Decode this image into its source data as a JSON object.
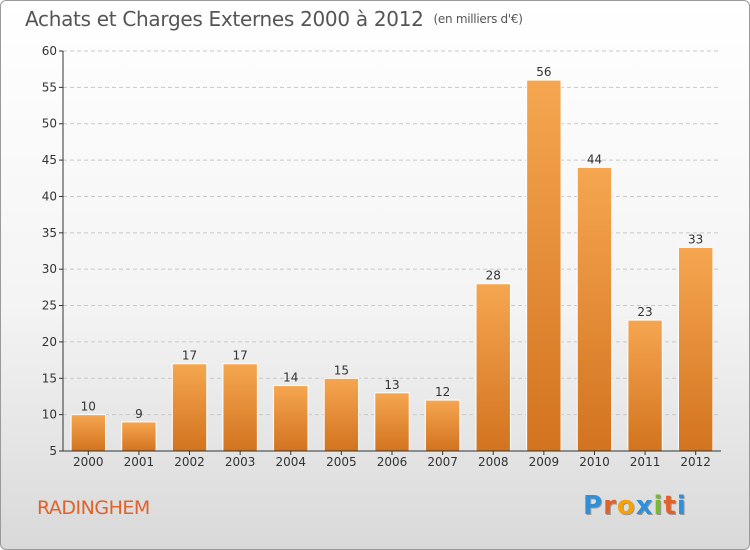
{
  "title": "Achats et Charges Externes 2000 à 2012",
  "subtitle": "(en milliers d'€)",
  "place": "RADINGHEM",
  "logo": {
    "letters": [
      "P",
      "r",
      "o",
      "x",
      "i",
      "t",
      "i"
    ],
    "colors": [
      "#2f8fd8",
      "#e0622b",
      "#f2a20c",
      "#2f8fd8",
      "#78b832",
      "#e0622b",
      "#2f8fd8"
    ]
  },
  "colors": {
    "bar_top": "#f6a650",
    "bar_bottom": "#d2731f",
    "grid": "#c8c8c8",
    "axis": "#333333"
  },
  "chart_data": {
    "type": "bar",
    "categories": [
      "2000",
      "2001",
      "2002",
      "2003",
      "2004",
      "2005",
      "2006",
      "2007",
      "2008",
      "2009",
      "2010",
      "2011",
      "2012"
    ],
    "values": [
      10,
      9,
      17,
      17,
      14,
      15,
      13,
      12,
      28,
      56,
      44,
      23,
      33
    ],
    "data_labels": [
      "10",
      "9",
      "17",
      "17",
      "14",
      "15",
      "13",
      "12",
      "28",
      "56",
      "44",
      "23",
      "33"
    ],
    "ylim": [
      5,
      60
    ],
    "yticks": [
      5,
      10,
      15,
      20,
      25,
      30,
      35,
      40,
      45,
      50,
      55,
      60
    ],
    "ytick_labels": [
      "5",
      "10",
      "15",
      "20",
      "25",
      "30",
      "35",
      "40",
      "45",
      "50",
      "55",
      "60"
    ],
    "grid": true,
    "grid_style": "dashed horizontal",
    "xlabel": "",
    "ylabel": ""
  }
}
